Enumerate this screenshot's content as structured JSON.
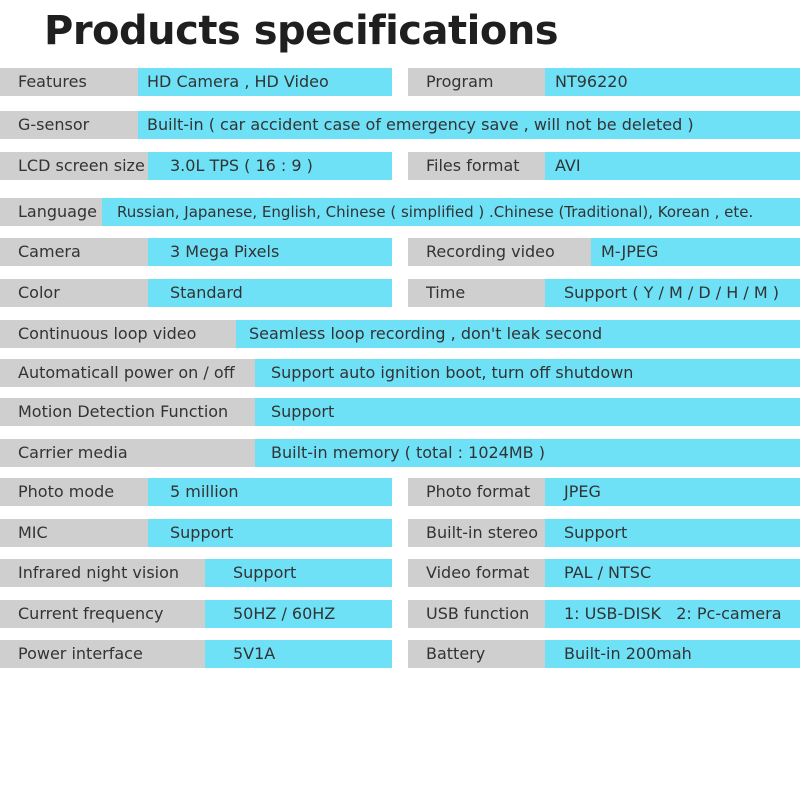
{
  "title": "Products specifications",
  "specs": {
    "features": {
      "label": "Features",
      "value": "HD Camera , HD Video"
    },
    "program": {
      "label": "Program",
      "value": "NT96220"
    },
    "gsensor": {
      "label": "G-sensor",
      "value": "Built-in ( car accident case of emergency save , will not be deleted )"
    },
    "lcd": {
      "label": "LCD screen size",
      "value": "3.0L TPS ( 16 : 9 )"
    },
    "files_format": {
      "label": "Files format",
      "value": "AVI"
    },
    "language": {
      "label": "Language",
      "value": "Russian, Japanese, English, Chinese ( simplified ) .Chinese (Traditional), Korean , ete."
    },
    "camera": {
      "label": "Camera",
      "value": "3 Mega Pixels"
    },
    "recording": {
      "label": "Recording video",
      "value": "M-JPEG"
    },
    "color": {
      "label": "Color",
      "value": "Standard"
    },
    "time": {
      "label": "Time",
      "value": "Support ( Y / M / D / H / M )"
    },
    "loop": {
      "label": "Continuous loop video",
      "value": "Seamless loop recording , don't leak second"
    },
    "power": {
      "label": "Automaticall power on / off",
      "value": "Support auto ignition boot, turn off shutdown"
    },
    "motion": {
      "label": "Motion Detection Function",
      "value": "Support"
    },
    "carrier": {
      "label": "Carrier media",
      "value": "Built-in memory ( total : 1024MB )"
    },
    "photo_mode": {
      "label": "Photo mode",
      "value": "5 million"
    },
    "photo_format": {
      "label": "Photo format",
      "value": "JPEG"
    },
    "mic": {
      "label": "MIC",
      "value": "Support"
    },
    "stereo": {
      "label": "Built-in stereo",
      "value": "Support"
    },
    "infrared": {
      "label": "Infrared night vision",
      "value": "Support"
    },
    "video_format": {
      "label": "Video format",
      "value": "PAL / NTSC"
    },
    "frequency": {
      "label": "Current frequency",
      "value": "50HZ / 60HZ"
    },
    "usb": {
      "label": "USB function",
      "value": "1: USB-DISK   2: Pc-camera"
    },
    "power_if": {
      "label": "Power interface",
      "value": "5V1A"
    },
    "battery": {
      "label": "Battery",
      "value": "Built-in 200mah"
    }
  },
  "colors": {
    "label_bg": "#cfcfcf",
    "value_bg": "#6ee1f7",
    "text": "#333333"
  }
}
